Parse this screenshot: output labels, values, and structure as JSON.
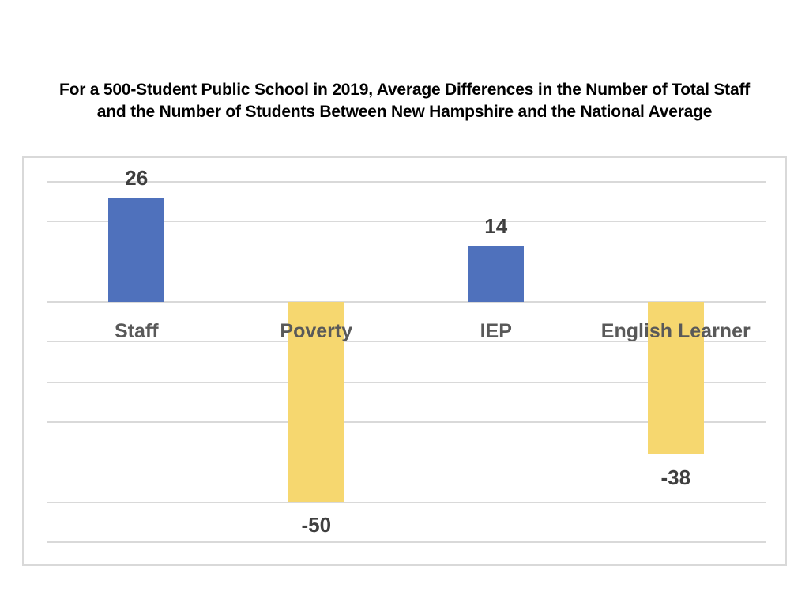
{
  "page": {
    "background": "#ffffff"
  },
  "title": {
    "line1": "For a 500-Student Public School in 2019, Average Differences in the Number of Total Staff",
    "line2": "and the Number of Students Between New Hampshire and the National Average"
  },
  "chart_data": {
    "type": "bar",
    "title": "For a 500-Student Public School in 2019, Average Differences in the Number of Total Staff and the Number of Students Between New Hampshire and the National Average",
    "categories": [
      "Staff",
      "Poverty",
      "IEP",
      "English Learner"
    ],
    "values": [
      26,
      -50,
      14,
      -38
    ],
    "data_labels": [
      "26",
      "-50",
      "14",
      "-38"
    ],
    "xlabel": "",
    "ylabel": "",
    "ylim": [
      -60,
      30
    ],
    "gridline_step": 10,
    "grid": true,
    "legend": false,
    "axis_tick_labels_visible": false,
    "colors": {
      "bar_positive": "#4f71bc",
      "bar_negative": "#f6d76f",
      "gridline": "#d9d9d9",
      "panel_border": "#d9d9d9",
      "value_label": "#3f3f3f",
      "category_label": "#595959",
      "title": "#000000"
    }
  }
}
